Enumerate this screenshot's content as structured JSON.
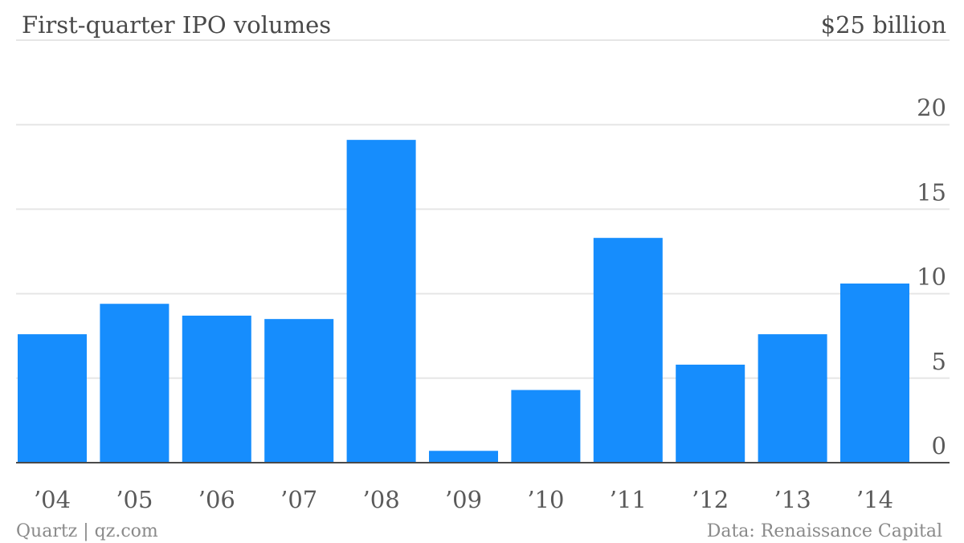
{
  "chart_data": {
    "type": "bar",
    "title": "First-quarter IPO volumes",
    "unit_label": "$25 billion",
    "categories": [
      "’04",
      "’05",
      "’06",
      "’07",
      "’08",
      "’09",
      "’10",
      "’11",
      "’12",
      "’13",
      "’14"
    ],
    "values": [
      7.6,
      9.4,
      8.7,
      8.5,
      19.1,
      0.7,
      4.3,
      13.3,
      5.8,
      7.6,
      10.6
    ],
    "ylim": [
      0,
      25
    ],
    "yticks": [
      0,
      5,
      10,
      15,
      20
    ],
    "ytick_labels": [
      "0",
      "5",
      "10",
      "15",
      "20"
    ],
    "grid": true,
    "axis_side": "right",
    "bar_color": "#168dfd",
    "grid_color": "#e6e6e6",
    "baseline_color": "#4a4a4a",
    "source": "Data: Renaissance Capital",
    "credit": "Quartz | qz.com"
  }
}
